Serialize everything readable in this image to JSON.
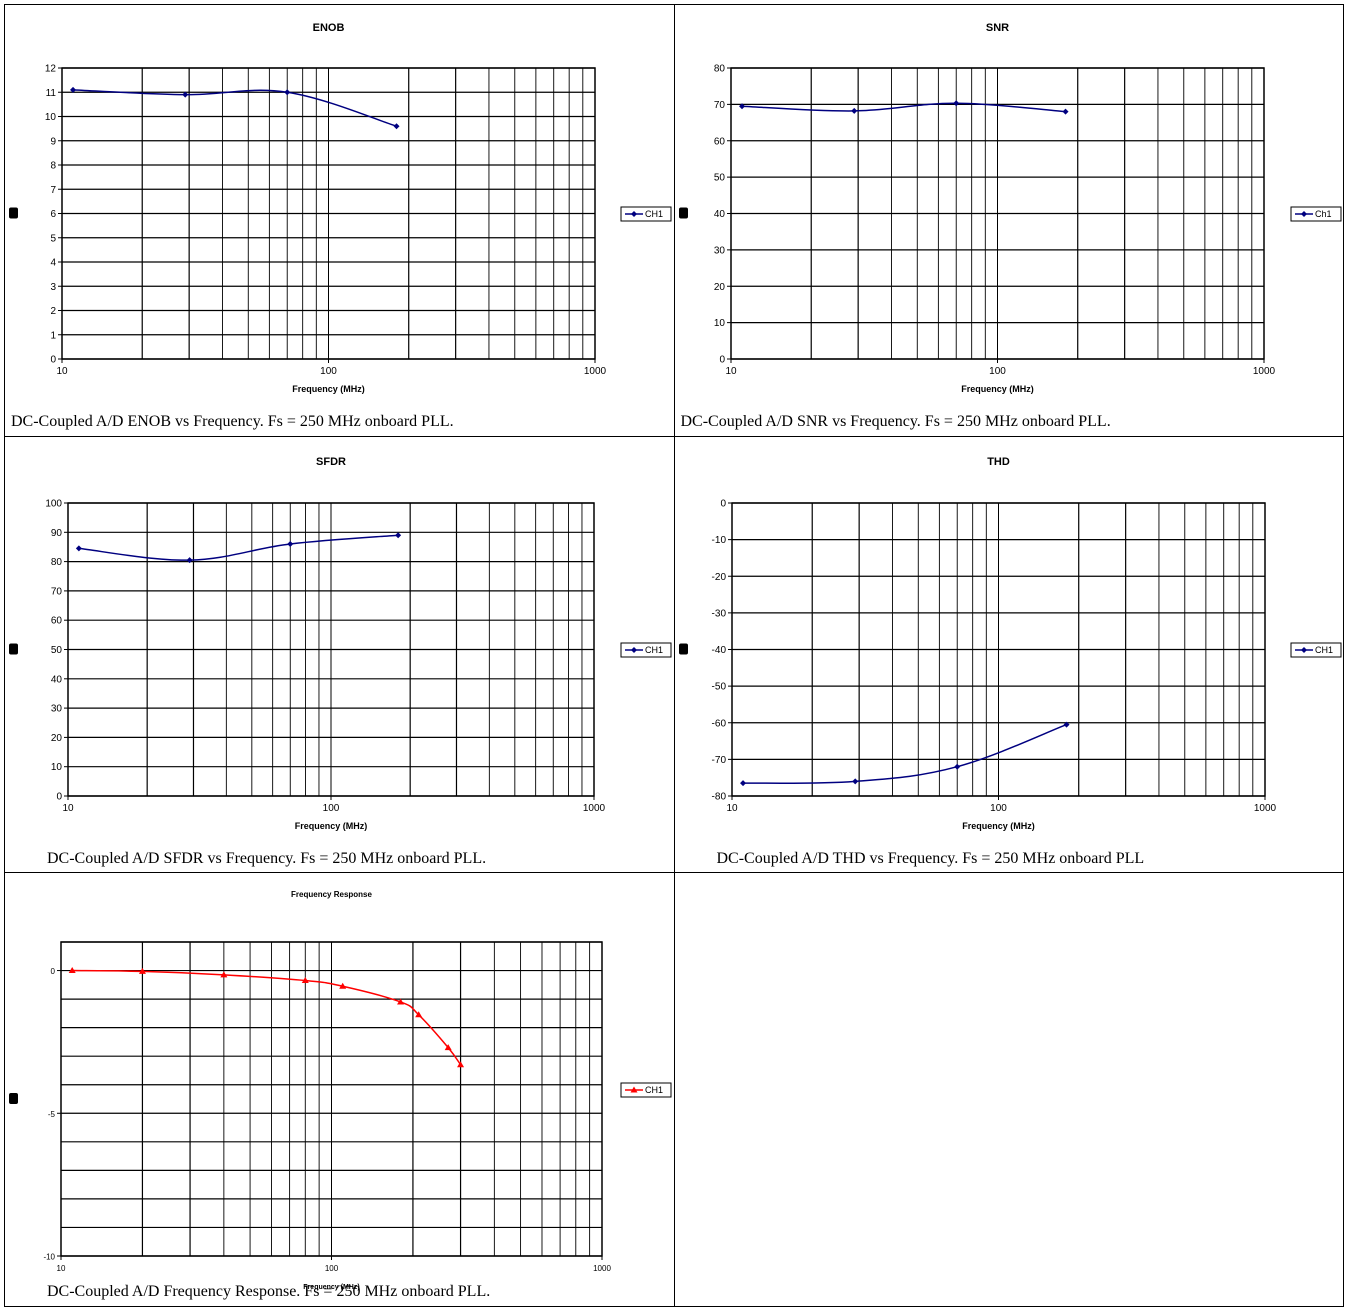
{
  "chart_data": [
    {
      "type": "line",
      "title": "ENOB",
      "xlabel": "Frequency (MHz)",
      "ylabel": "",
      "xscale": "log",
      "xlim": [
        10,
        1000
      ],
      "ylim": [
        0,
        12
      ],
      "y_step": 1,
      "x_ticks": [
        "10",
        "100",
        "1000"
      ],
      "y_ticks": [
        "0",
        "1",
        "2",
        "3",
        "4",
        "5",
        "6",
        "7",
        "8",
        "9",
        "10",
        "11",
        "12"
      ],
      "grid": true,
      "legend_position": "right",
      "series": [
        {
          "name": "CH1",
          "color": "#000080",
          "marker": "diamond",
          "x": [
            11,
            29,
            70,
            180
          ],
          "y": [
            11.1,
            10.9,
            11.0,
            9.6
          ]
        }
      ],
      "caption": "DC-Coupled A/D ENOB vs Frequency.  Fs = 250 MHz onboard PLL."
    },
    {
      "type": "line",
      "title": "SNR",
      "xlabel": "Frequency (MHz)",
      "ylabel": "",
      "xscale": "log",
      "xlim": [
        10,
        1000
      ],
      "ylim": [
        0,
        80
      ],
      "y_step": 10,
      "x_ticks": [
        "10",
        "100",
        "1000"
      ],
      "y_ticks": [
        "0",
        "10",
        "20",
        "30",
        "40",
        "50",
        "60",
        "70",
        "80"
      ],
      "grid": true,
      "legend_position": "right",
      "series": [
        {
          "name": "Ch1",
          "color": "#000080",
          "marker": "diamond",
          "x": [
            11,
            29,
            70,
            180
          ],
          "y": [
            69.5,
            68.2,
            70.3,
            68.0
          ]
        }
      ],
      "caption": "DC-Coupled A/D SNR vs Frequency.  Fs = 250 MHz onboard PLL."
    },
    {
      "type": "line",
      "title": "SFDR",
      "xlabel": "Frequency (MHz)",
      "ylabel": "",
      "xscale": "log",
      "xlim": [
        10,
        1000
      ],
      "ylim": [
        0,
        100
      ],
      "y_step": 10,
      "x_ticks": [
        "10",
        "100",
        "1000"
      ],
      "y_ticks": [
        "0",
        "10",
        "20",
        "30",
        "40",
        "50",
        "60",
        "70",
        "80",
        "90",
        "100"
      ],
      "grid": true,
      "legend_position": "right",
      "series": [
        {
          "name": "CH1",
          "color": "#000080",
          "marker": "diamond",
          "x": [
            11,
            29,
            70,
            180
          ],
          "y": [
            84.5,
            80.5,
            86.0,
            89.0
          ]
        }
      ],
      "caption": "DC-Coupled A/D SFDR vs Frequency.  Fs = 250 MHz onboard PLL."
    },
    {
      "type": "line",
      "title": "THD",
      "xlabel": "Frequency (MHz)",
      "ylabel": "",
      "xscale": "log",
      "xlim": [
        10,
        1000
      ],
      "ylim": [
        -80,
        0
      ],
      "y_step": 10,
      "x_ticks": [
        "10",
        "100",
        "1000"
      ],
      "y_ticks": [
        "-80",
        "-70",
        "-60",
        "-50",
        "-40",
        "-30",
        "-20",
        "-10",
        "0"
      ],
      "grid": true,
      "legend_position": "right",
      "series": [
        {
          "name": "CH1",
          "color": "#000080",
          "marker": "diamond",
          "x": [
            11,
            29,
            70,
            180
          ],
          "y": [
            -76.5,
            -76.0,
            -72.0,
            -60.5
          ]
        }
      ],
      "caption": "DC-Coupled A/D THD  vs Frequency.  Fs = 250 MHz onboard PLL"
    },
    {
      "type": "line",
      "title": "Frequency Response",
      "xlabel": "Frequency (MHz)",
      "ylabel": "",
      "xscale": "log",
      "xlim": [
        10,
        1000
      ],
      "ylim": [
        -10,
        1
      ],
      "y_step": 1,
      "x_ticks": [
        "10",
        "100",
        "1000"
      ],
      "y_ticks": [
        "-10",
        "-5",
        "0"
      ],
      "y_tick_values": [
        -10,
        -5,
        0
      ],
      "grid": true,
      "legend_position": "right",
      "series": [
        {
          "name": "CH1",
          "color": "#ff0000",
          "marker": "triangle",
          "x": [
            11,
            20,
            40,
            80,
            110,
            180,
            210,
            270,
            300
          ],
          "y": [
            0.0,
            -0.03,
            -0.15,
            -0.35,
            -0.55,
            -1.1,
            -1.55,
            -2.7,
            -3.3
          ]
        }
      ],
      "caption": "DC-Coupled A/D Frequency Response.  Fs = 250 MHz onboard PLL."
    }
  ]
}
